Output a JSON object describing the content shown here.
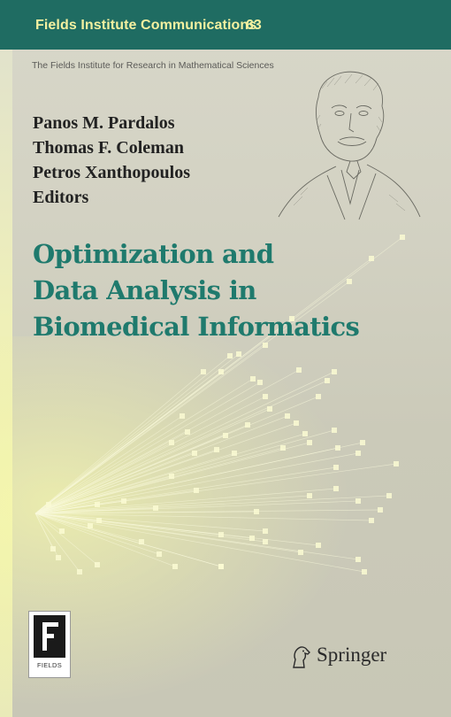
{
  "series": {
    "name": "Fields Institute Communications",
    "volume": "63",
    "institute": "The Fields Institute for Research in Mathematical Sciences"
  },
  "editors": [
    "Panos M. Pardalos",
    "Thomas F. Coleman",
    "Petros Xanthopoulos"
  ],
  "editors_label": "Editors",
  "title_lines": [
    "Optimization and",
    "Data Analysis in",
    "Biomedical Informatics"
  ],
  "logo": {
    "label": "FIELDS"
  },
  "publisher": "Springer",
  "colors": {
    "header": "#1f6c62",
    "header_text": "#f3f0a0",
    "title": "#1f7a6d",
    "background": "#d3d2c3"
  }
}
